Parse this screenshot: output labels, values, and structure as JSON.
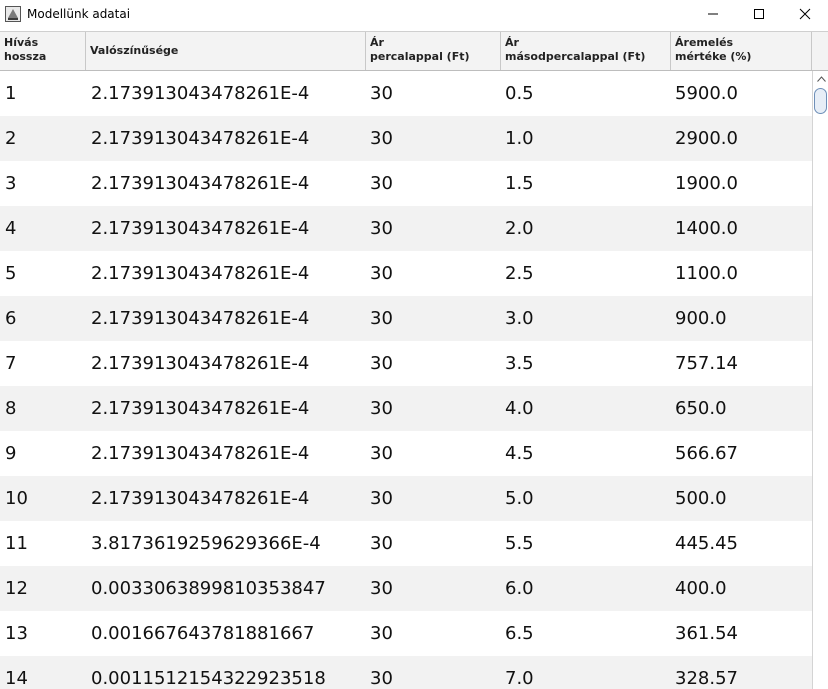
{
  "window": {
    "title": "Modellünk adatai",
    "icon": "java-app-icon",
    "buttons": [
      "minimize-icon",
      "maximize-icon",
      "close-icon"
    ]
  },
  "table": {
    "columns": [
      "Hívás\nhossza",
      "Valószínűsége",
      "Ár\npercalappal (Ft)",
      "Ár\nmásodpercalappal (Ft)",
      "Áremelés\nmértéke (%)"
    ],
    "rows": [
      [
        "1",
        "2.173913043478261E-4",
        "30",
        "0.5",
        "5900.0"
      ],
      [
        "2",
        "2.173913043478261E-4",
        "30",
        "1.0",
        "2900.0"
      ],
      [
        "3",
        "2.173913043478261E-4",
        "30",
        "1.5",
        "1900.0"
      ],
      [
        "4",
        "2.173913043478261E-4",
        "30",
        "2.0",
        "1400.0"
      ],
      [
        "5",
        "2.173913043478261E-4",
        "30",
        "2.5",
        "1100.0"
      ],
      [
        "6",
        "2.173913043478261E-4",
        "30",
        "3.0",
        "900.0"
      ],
      [
        "7",
        "2.173913043478261E-4",
        "30",
        "3.5",
        "757.14"
      ],
      [
        "8",
        "2.173913043478261E-4",
        "30",
        "4.0",
        "650.0"
      ],
      [
        "9",
        "2.173913043478261E-4",
        "30",
        "4.5",
        "566.67"
      ],
      [
        "10",
        "2.173913043478261E-4",
        "30",
        "5.0",
        "500.0"
      ],
      [
        "11",
        "3.8173619259629366E-4",
        "30",
        "5.5",
        "445.45"
      ],
      [
        "12",
        "0.0033063899810353847",
        "30",
        "6.0",
        "400.0"
      ],
      [
        "13",
        "0.001667643781881667",
        "30",
        "6.5",
        "361.54"
      ],
      [
        "14",
        "0.0011512154322923518",
        "30",
        "7.0",
        "328.57"
      ]
    ]
  },
  "scrollbar": {
    "position": 0.0
  }
}
